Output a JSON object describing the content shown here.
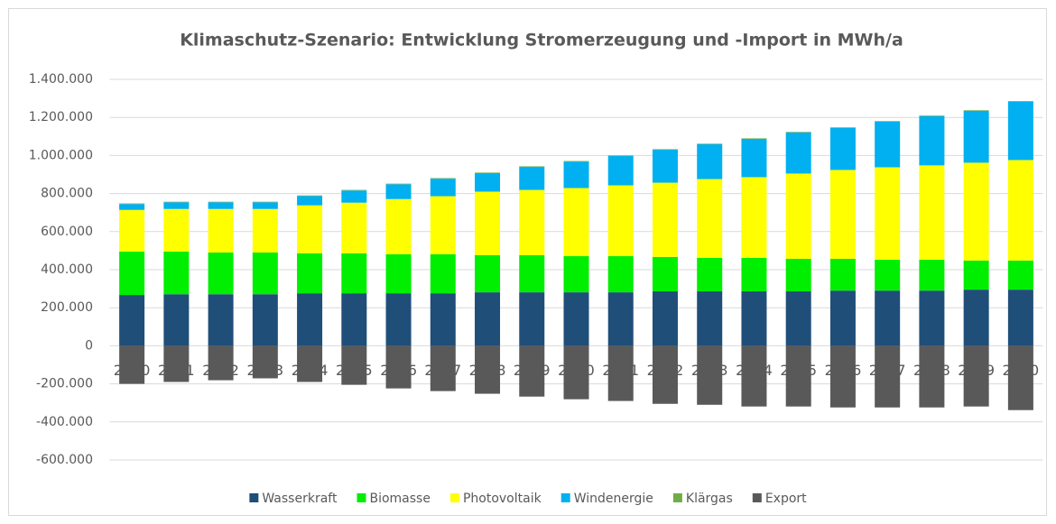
{
  "chart_data": {
    "type": "stacked_bar",
    "title": "Klimaschutz-Szenario: Entwicklung Stromerzeugung und -Import in MWh/a",
    "categories": [
      "2010",
      "2011",
      "2012",
      "2013",
      "2014",
      "2015",
      "2016",
      "2017",
      "2018",
      "2019",
      "2020",
      "2021",
      "2022",
      "2023",
      "2024",
      "2025",
      "2026",
      "2027",
      "2028",
      "2029",
      "2030"
    ],
    "series": [
      {
        "name": "Wasserkraft",
        "color": "#1f4e79",
        "values": [
          267000,
          271000,
          271000,
          271000,
          276000,
          276000,
          276000,
          276000,
          281000,
          281000,
          281000,
          281000,
          286000,
          286000,
          286000,
          286000,
          290000,
          290000,
          290000,
          295000,
          295000
        ]
      },
      {
        "name": "Biomasse",
        "color": "#00ee00",
        "values": [
          228000,
          224000,
          219000,
          219000,
          210000,
          210000,
          205000,
          205000,
          195000,
          195000,
          190000,
          190000,
          181000,
          176000,
          176000,
          171000,
          167000,
          162000,
          162000,
          153000,
          153000
        ]
      },
      {
        "name": "Photovoltaik",
        "color": "#ffff00",
        "values": [
          219000,
          224000,
          229000,
          229000,
          252000,
          266000,
          290000,
          305000,
          334000,
          343000,
          358000,
          372000,
          390000,
          414000,
          424000,
          448000,
          467000,
          486000,
          496000,
          514000,
          528000
        ]
      },
      {
        "name": "Windenergie",
        "color": "#00b0f0",
        "values": [
          31000,
          35000,
          35000,
          35000,
          49000,
          64000,
          78000,
          92000,
          97000,
          121000,
          139000,
          154000,
          173000,
          183000,
          201000,
          216000,
          221000,
          240000,
          259000,
          273000,
          307000
        ]
      },
      {
        "name": "Klärgas",
        "color": "#70ad47",
        "values": [
          3000,
          3000,
          3000,
          3000,
          3000,
          3000,
          3000,
          3000,
          3000,
          3000,
          3000,
          3000,
          3000,
          3000,
          3000,
          3000,
          3000,
          3000,
          3000,
          3000,
          3000
        ]
      },
      {
        "name": "Export",
        "color": "#595959",
        "values": [
          -200000,
          -190000,
          -181000,
          -171000,
          -190000,
          -205000,
          -224000,
          -238000,
          -252000,
          -267000,
          -281000,
          -290000,
          -305000,
          -310000,
          -319000,
          -319000,
          -324000,
          -324000,
          -324000,
          -319000,
          -338000
        ]
      }
    ],
    "ylim": [
      -600000,
      1400000
    ],
    "yticks": [
      {
        "value": -600000,
        "label": "-600.000"
      },
      {
        "value": -400000,
        "label": "-400.000"
      },
      {
        "value": -200000,
        "label": "-200.000"
      },
      0,
      {
        "value": 200000,
        "label": "200.000"
      },
      {
        "value": 400000,
        "label": "400.000"
      },
      {
        "value": 600000,
        "label": "600.000"
      },
      {
        "value": 800000,
        "label": "800.000"
      },
      {
        "value": 1000000,
        "label": "1.000.000"
      },
      {
        "value": 1200000,
        "label": "1.200.000"
      },
      {
        "value": 1400000,
        "label": "1.400.000"
      }
    ],
    "grid": true,
    "legend": "bottom"
  }
}
